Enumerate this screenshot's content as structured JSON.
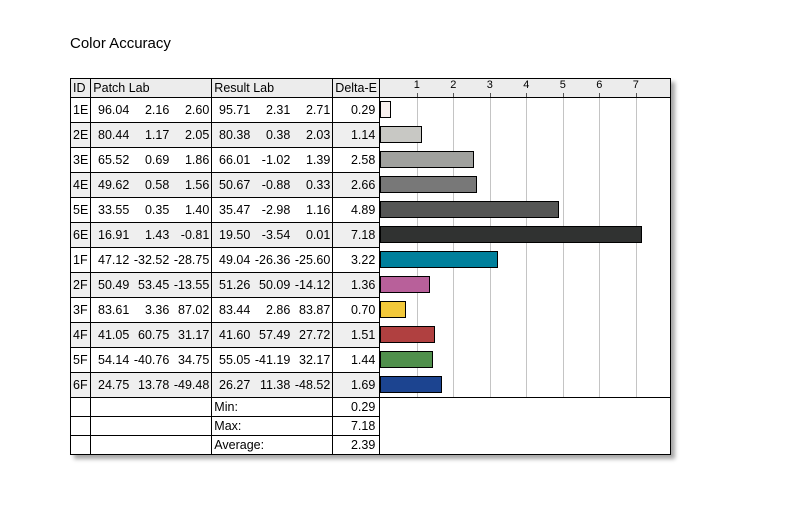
{
  "title": "Color Accuracy",
  "headers": {
    "id": "ID",
    "patch": "Patch Lab",
    "result": "Result Lab",
    "delta": "Delta-E"
  },
  "chart_data": {
    "type": "bar",
    "orientation": "horizontal",
    "title": "Color Accuracy",
    "xlabel": "Delta-E",
    "xlim": [
      0,
      8
    ],
    "ticks": [
      "1",
      "2",
      "3",
      "4",
      "5",
      "6",
      "7"
    ],
    "grid": true,
    "categories": [
      "1E",
      "2E",
      "3E",
      "4E",
      "5E",
      "6E",
      "1F",
      "2F",
      "3F",
      "4F",
      "5F",
      "6F"
    ],
    "values": [
      0.29,
      1.14,
      2.58,
      2.66,
      4.89,
      7.18,
      3.22,
      1.36,
      0.7,
      1.51,
      1.44,
      1.69
    ],
    "colors": [
      "#f8f0ee",
      "#c8c8c4",
      "#a0a19e",
      "#787878",
      "#555655",
      "#303231",
      "#00809c",
      "#b8609a",
      "#f2c83a",
      "#b04040",
      "#50904c",
      "#1c4490"
    ]
  },
  "rows": [
    {
      "id": "1E",
      "patch": [
        "96.04",
        "2.16",
        "2.60"
      ],
      "result": [
        "95.71",
        "2.31",
        "2.71"
      ],
      "delta": "0.29"
    },
    {
      "id": "2E",
      "patch": [
        "80.44",
        "1.17",
        "2.05"
      ],
      "result": [
        "80.38",
        "0.38",
        "2.03"
      ],
      "delta": "1.14"
    },
    {
      "id": "3E",
      "patch": [
        "65.52",
        "0.69",
        "1.86"
      ],
      "result": [
        "66.01",
        "-1.02",
        "1.39"
      ],
      "delta": "2.58"
    },
    {
      "id": "4E",
      "patch": [
        "49.62",
        "0.58",
        "1.56"
      ],
      "result": [
        "50.67",
        "-0.88",
        "0.33"
      ],
      "delta": "2.66"
    },
    {
      "id": "5E",
      "patch": [
        "33.55",
        "0.35",
        "1.40"
      ],
      "result": [
        "35.47",
        "-2.98",
        "1.16"
      ],
      "delta": "4.89"
    },
    {
      "id": "6E",
      "patch": [
        "16.91",
        "1.43",
        "-0.81"
      ],
      "result": [
        "19.50",
        "-3.54",
        "0.01"
      ],
      "delta": "7.18"
    },
    {
      "id": "1F",
      "patch": [
        "47.12",
        "-32.52",
        "-28.75"
      ],
      "result": [
        "49.04",
        "-26.36",
        "-25.60"
      ],
      "delta": "3.22"
    },
    {
      "id": "2F",
      "patch": [
        "50.49",
        "53.45",
        "-13.55"
      ],
      "result": [
        "51.26",
        "50.09",
        "-14.12"
      ],
      "delta": "1.36"
    },
    {
      "id": "3F",
      "patch": [
        "83.61",
        "3.36",
        "87.02"
      ],
      "result": [
        "83.44",
        "2.86",
        "83.87"
      ],
      "delta": "0.70"
    },
    {
      "id": "4F",
      "patch": [
        "41.05",
        "60.75",
        "31.17"
      ],
      "result": [
        "41.60",
        "57.49",
        "27.72"
      ],
      "delta": "1.51"
    },
    {
      "id": "5F",
      "patch": [
        "54.14",
        "-40.76",
        "34.75"
      ],
      "result": [
        "55.05",
        "-41.19",
        "32.17"
      ],
      "delta": "1.44"
    },
    {
      "id": "6F",
      "patch": [
        "24.75",
        "13.78",
        "-49.48"
      ],
      "result": [
        "26.27",
        "11.38",
        "-48.52"
      ],
      "delta": "1.69"
    }
  ],
  "summary": [
    {
      "label": "Min:",
      "value": "0.29"
    },
    {
      "label": "Max:",
      "value": "7.18"
    },
    {
      "label": "Average:",
      "value": "2.39"
    }
  ]
}
